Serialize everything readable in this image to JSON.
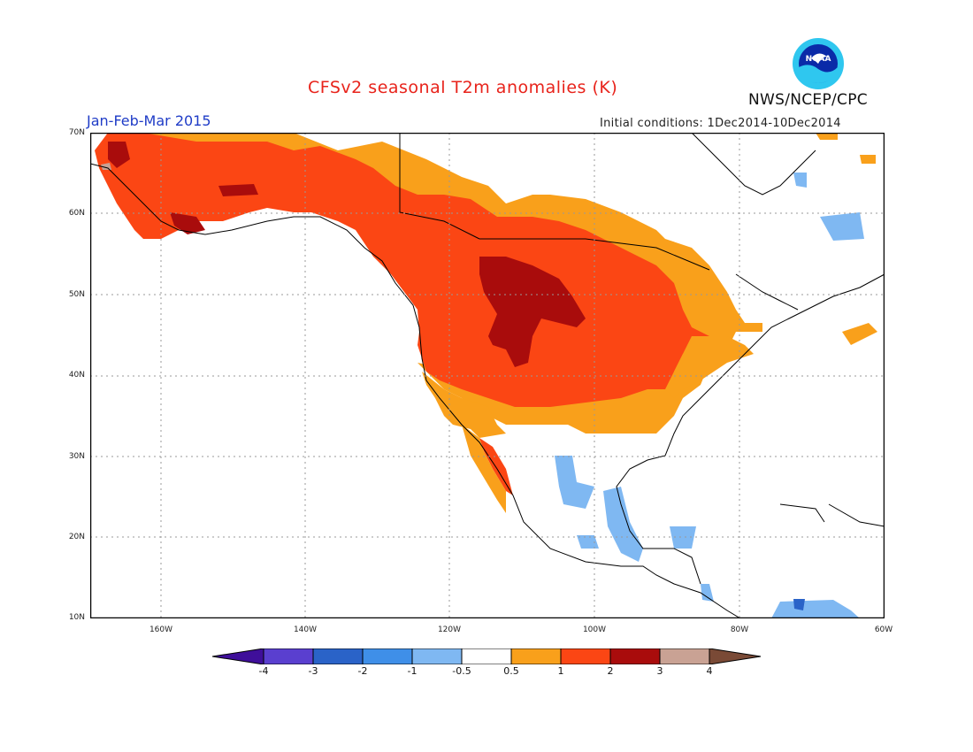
{
  "header": {
    "title": "CFSv2 seasonal T2m anomalies (K)",
    "agency": "NWS/NCEP/CPC",
    "logo_text": "NOAA",
    "period": "Jan-Feb-Mar 2015",
    "initial_conditions": "Initial conditions: 1Dec2014-10Dec2014"
  },
  "map": {
    "lat_labels": [
      "70N",
      "60N",
      "50N",
      "40N",
      "30N",
      "20N",
      "10N"
    ],
    "lon_labels": [
      "160W",
      "140W",
      "120W",
      "100W",
      "80W",
      "60W"
    ],
    "extent": {
      "lon": [
        -171,
        -60
      ],
      "lat": [
        10,
        70
      ]
    }
  },
  "colorbar": {
    "labels": [
      "-4",
      "-3",
      "-2",
      "-1",
      "-0.5",
      "0.5",
      "1",
      "2",
      "3",
      "4"
    ],
    "colors": [
      "#3f0f9a",
      "#5a3fcf",
      "#2a63c8",
      "#3f8fe8",
      "#7fb8f2",
      "#ffffff",
      "#f9a01b",
      "#fb4614",
      "#a90c0c",
      "#c9a294",
      "#7a4a36"
    ]
  },
  "colors": {
    "title": "#e8231b",
    "period": "#1f3cc7",
    "anomaly_0.5_1": "#f9a01b",
    "anomaly_1_2": "#fb4614",
    "anomaly_2_3": "#a90c0c",
    "anomaly_-1_-0.5": "#7fb8f2",
    "anomaly_3_4": "#c9a294"
  }
}
